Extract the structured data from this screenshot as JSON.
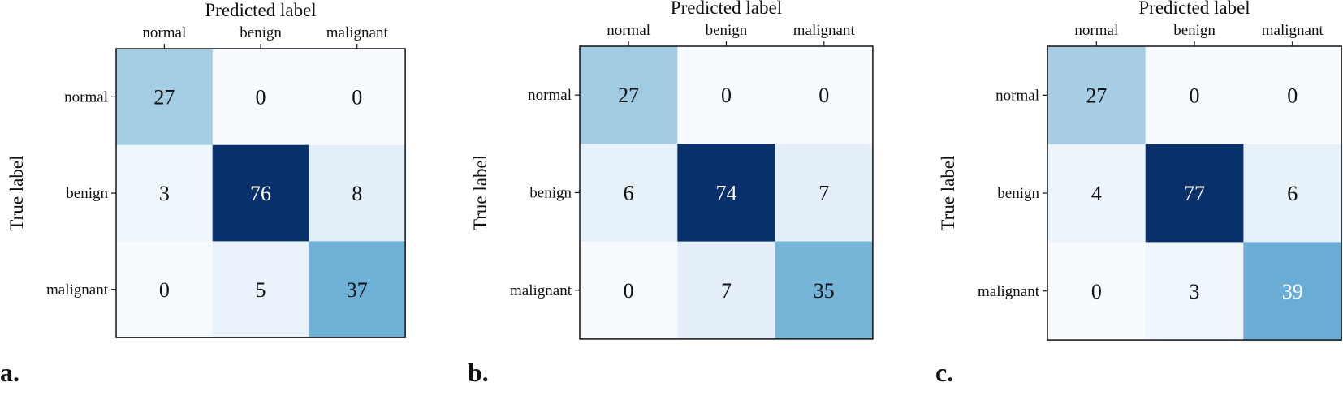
{
  "chart_data": [
    {
      "type": "heatmap",
      "panel_label": "a.",
      "xlabel": "Predicted label",
      "ylabel": "True label",
      "x_categories": [
        "normal",
        "benign",
        "malignant"
      ],
      "y_categories": [
        "normal",
        "benign",
        "malignant"
      ],
      "values": [
        [
          27,
          0,
          0
        ],
        [
          3,
          76,
          8
        ],
        [
          0,
          5,
          37
        ]
      ],
      "colormap": "Blues",
      "vmin": 0,
      "vmax": 76
    },
    {
      "type": "heatmap",
      "panel_label": "b.",
      "xlabel": "Predicted label",
      "ylabel": "True label",
      "x_categories": [
        "normal",
        "benign",
        "malignant"
      ],
      "y_categories": [
        "normal",
        "benign",
        "malignant"
      ],
      "values": [
        [
          27,
          0,
          0
        ],
        [
          6,
          74,
          7
        ],
        [
          0,
          7,
          35
        ]
      ],
      "colormap": "Blues",
      "vmin": 0,
      "vmax": 74
    },
    {
      "type": "heatmap",
      "panel_label": "c.",
      "xlabel": "Predicted label",
      "ylabel": "True label",
      "x_categories": [
        "normal",
        "benign",
        "malignant"
      ],
      "y_categories": [
        "normal",
        "benign",
        "malignant"
      ],
      "values": [
        [
          27,
          0,
          0
        ],
        [
          4,
          77,
          6
        ],
        [
          0,
          3,
          39
        ]
      ],
      "colormap": "Blues",
      "vmin": 0,
      "vmax": 77
    }
  ]
}
